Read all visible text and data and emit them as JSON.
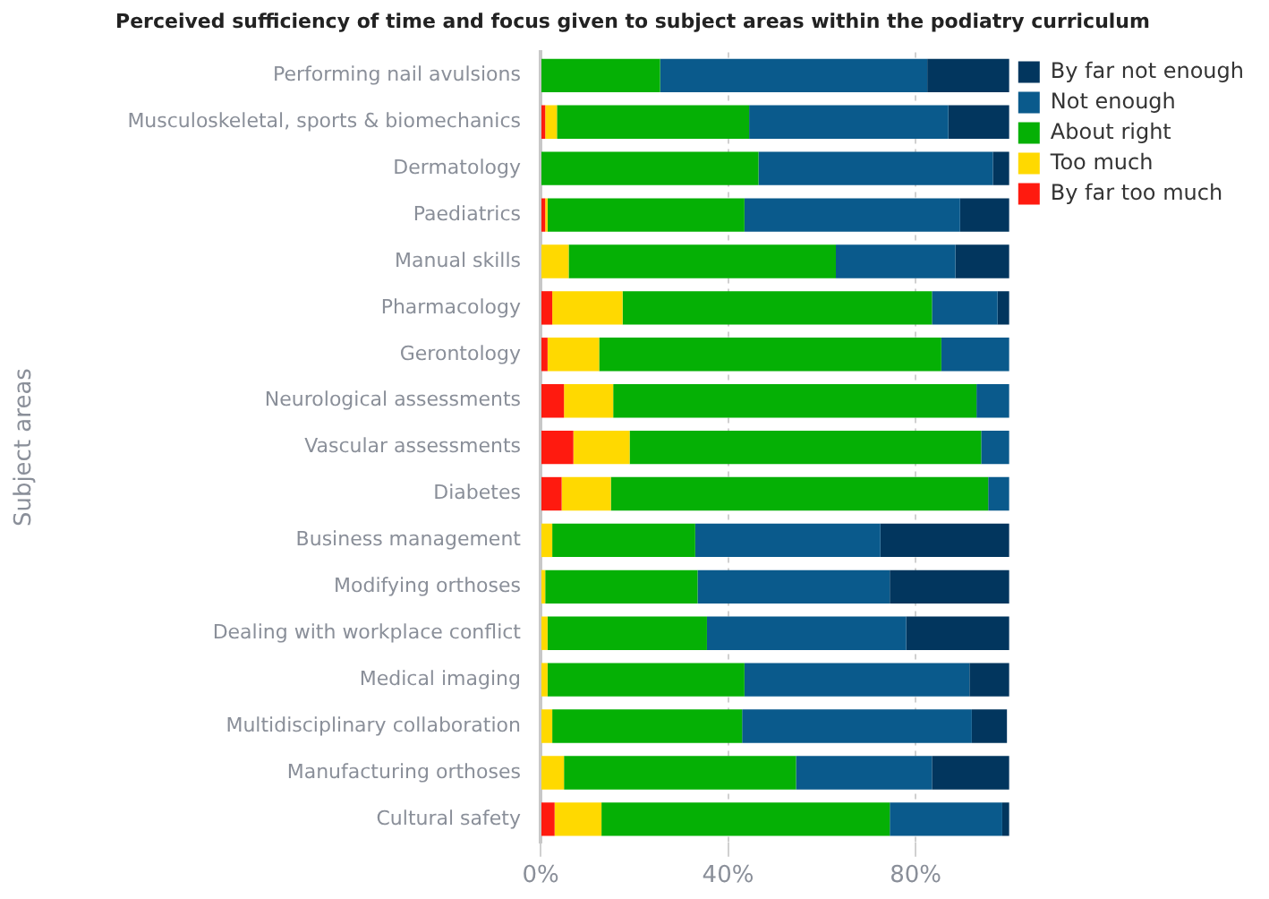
{
  "chart_data": {
    "type": "bar",
    "orientation": "horizontal",
    "stacked": true,
    "title": "Perceived sufficiency of time and focus given to subject areas within the podiatry curriculum",
    "ylabel": "Subject areas",
    "categories": [
      "Performing nail avulsions",
      "Musculoskeletal, sports & biomechanics",
      "Dermatology",
      "Paediatrics",
      "Manual skills",
      "Pharmacology",
      "Gerontology",
      "Neurological assessments",
      "Vascular assessments",
      "Diabetes",
      "Business management",
      "Modifying orthoses",
      "Dealing with workplace conflict",
      "Medical imaging",
      "Multidisciplinary collaboration",
      "Manufacturing orthoses",
      "Cultural safety"
    ],
    "series": [
      {
        "name": "By far too much",
        "color": "#ff1a0f",
        "values": [
          0,
          1,
          0,
          1,
          0,
          2.5,
          1.5,
          5,
          7,
          4.5,
          0,
          0,
          0,
          0,
          0,
          0,
          3
        ]
      },
      {
        "name": "Too much",
        "color": "#ffd900",
        "values": [
          0,
          2.5,
          0,
          0.5,
          6,
          15,
          11,
          10.5,
          12,
          10.5,
          2.5,
          1,
          1.5,
          1.5,
          2.5,
          5,
          10
        ]
      },
      {
        "name": "About right",
        "color": "#05b005",
        "values": [
          25.5,
          41,
          46.5,
          42,
          57,
          66,
          73,
          77.5,
          75,
          80.5,
          30.5,
          32.5,
          34,
          42,
          40.5,
          49.5,
          61.5
        ]
      },
      {
        "name": "Not enough",
        "color": "#0a5a8c",
        "values": [
          57,
          42.5,
          50,
          46,
          25.5,
          14,
          14.5,
          7,
          6,
          4.5,
          39.5,
          41,
          42.5,
          48,
          49,
          29,
          24
        ]
      },
      {
        "name": "By far not enough",
        "color": "#02365e",
        "values": [
          17.5,
          13,
          3.5,
          10.5,
          11.5,
          2.5,
          0,
          0,
          0,
          0,
          27.5,
          25.5,
          22,
          8.5,
          7.5,
          16.5,
          1.5
        ]
      }
    ],
    "xlim": [
      0,
      100
    ],
    "xticks": [
      {
        "value": 0,
        "label": "0%"
      },
      {
        "value": 40,
        "label": "40%"
      },
      {
        "value": 80,
        "label": "80%"
      }
    ],
    "grid": "x",
    "legend": "top right"
  }
}
